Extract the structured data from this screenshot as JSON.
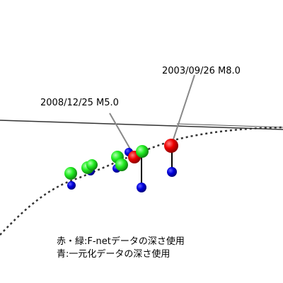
{
  "annotations": [
    "2003/09/26 M8.0",
    "2008/12/25 M5.0"
  ],
  "legend": [
    "赤・緑:F-netデータの深さ使用",
    "青:一元化データの深さ使用"
  ]
}
